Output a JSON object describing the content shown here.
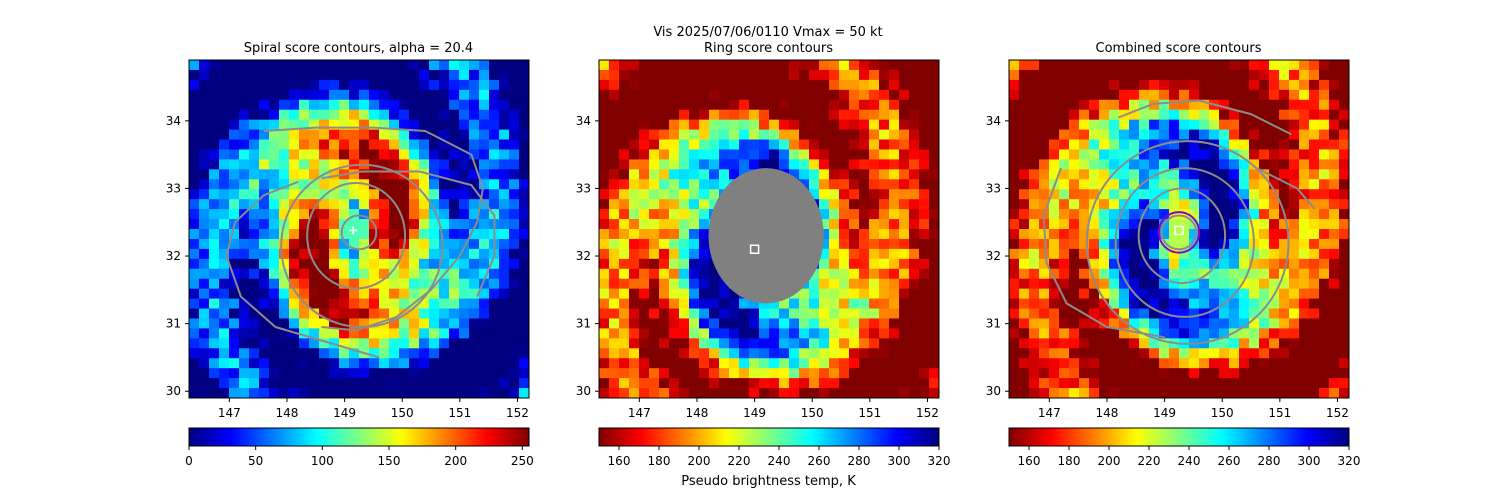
{
  "figure": {
    "suptitle_line1": "Vis  2025/07/06/0110    Vmax = 50 kt"
  },
  "colors": {
    "contour": "#8c8c8c",
    "inner_ring": "#8b00c8",
    "ring_mask": "#808080",
    "center_marker": "#ffffff"
  },
  "chart_data": [
    {
      "type": "heatmap",
      "title": "Spiral score contours, alpha = 20.4",
      "xlim": [
        146.3,
        152.2
      ],
      "ylim": [
        29.9,
        34.9
      ],
      "xticks": [
        147,
        148,
        149,
        150,
        151,
        152
      ],
      "yticks": [
        30,
        31,
        32,
        33,
        34
      ],
      "colormap": "jet",
      "colorbar": {
        "range": [
          0,
          255
        ],
        "ticks": [
          0,
          50,
          100,
          150,
          200,
          250
        ],
        "reversed": false,
        "label": ""
      },
      "center": [
        149.15,
        32.38
      ],
      "marker": "plus",
      "contours": [
        {
          "kind": "ring",
          "center": [
            149.25,
            32.35
          ],
          "r": [
            0.3,
            0.25
          ]
        },
        {
          "kind": "ring",
          "center": [
            149.2,
            32.3
          ],
          "r": [
            0.85,
            0.78
          ]
        },
        {
          "kind": "ring",
          "center": [
            149.3,
            32.15
          ],
          "r": [
            1.4,
            1.2
          ]
        },
        {
          "kind": "path",
          "points": [
            [
              147.6,
              33.85
            ],
            [
              148.5,
              33.9
            ],
            [
              149.5,
              33.9
            ],
            [
              150.4,
              33.85
            ],
            [
              151.2,
              33.5
            ],
            [
              151.4,
              33.0
            ],
            [
              151.3,
              32.5
            ],
            [
              151.0,
              32.0
            ],
            [
              150.5,
              31.5
            ],
            [
              149.9,
              31.1
            ],
            [
              149.2,
              30.9
            ],
            [
              148.6,
              30.95
            ]
          ]
        },
        {
          "kind": "path",
          "points": [
            [
              148.2,
              33.1
            ],
            [
              147.6,
              32.9
            ],
            [
              147.1,
              32.5
            ],
            [
              146.95,
              32.0
            ],
            [
              147.2,
              31.4
            ],
            [
              147.8,
              30.95
            ],
            [
              148.6,
              30.75
            ],
            [
              149.6,
              30.5
            ]
          ]
        },
        {
          "kind": "path",
          "points": [
            [
              148.6,
              33.15
            ],
            [
              149.3,
              33.25
            ],
            [
              150.3,
              33.25
            ],
            [
              151.2,
              33.05
            ],
            [
              151.6,
              32.6
            ],
            [
              151.6,
              32.0
            ],
            [
              151.3,
              31.4
            ]
          ]
        }
      ]
    },
    {
      "type": "heatmap",
      "title": "Ring score contours",
      "xlim": [
        146.3,
        152.2
      ],
      "ylim": [
        29.9,
        34.9
      ],
      "xticks": [
        147,
        148,
        149,
        150,
        151,
        152
      ],
      "yticks": [
        30,
        31,
        32,
        33,
        34
      ],
      "colormap": "jet",
      "colorbar": {
        "range": [
          150,
          320
        ],
        "ticks": [
          160,
          180,
          200,
          220,
          240,
          260,
          280,
          300,
          320
        ],
        "reversed": true,
        "label": "Pseudo brightness temp, K"
      },
      "center": [
        149.0,
        32.1
      ],
      "marker": "square",
      "mask": {
        "center": [
          149.2,
          32.3
        ],
        "r": [
          1.0,
          1.0
        ]
      },
      "contours": []
    },
    {
      "type": "heatmap",
      "title": "Combined score contours",
      "xlim": [
        146.3,
        152.2
      ],
      "ylim": [
        29.9,
        34.9
      ],
      "xticks": [
        147,
        148,
        149,
        150,
        151,
        152
      ],
      "yticks": [
        30,
        31,
        32,
        33,
        34
      ],
      "colormap": "jet",
      "colorbar": {
        "range": [
          150,
          320
        ],
        "ticks": [
          160,
          180,
          200,
          220,
          240,
          260,
          280,
          300,
          320
        ],
        "reversed": true,
        "label": ""
      },
      "center": [
        149.25,
        32.38
      ],
      "marker": "square",
      "inner_ring": {
        "center": [
          149.25,
          32.35
        ],
        "r": [
          0.35,
          0.3
        ]
      },
      "contours": [
        {
          "kind": "ring",
          "center": [
            149.25,
            32.35
          ],
          "r": [
            0.3,
            0.25
          ]
        },
        {
          "kind": "ring",
          "center": [
            149.3,
            32.3
          ],
          "r": [
            0.75,
            0.7
          ]
        },
        {
          "kind": "ring",
          "center": [
            149.35,
            32.2
          ],
          "r": [
            1.2,
            1.1
          ]
        },
        {
          "kind": "ring",
          "center": [
            149.4,
            32.2
          ],
          "r": [
            1.75,
            1.5
          ]
        },
        {
          "kind": "path",
          "points": [
            [
              148.2,
              34.05
            ],
            [
              148.8,
              34.25
            ],
            [
              149.6,
              34.3
            ],
            [
              150.5,
              34.1
            ],
            [
              151.2,
              33.8
            ]
          ]
        },
        {
          "kind": "path",
          "points": [
            [
              147.2,
              33.3
            ],
            [
              146.9,
              32.6
            ],
            [
              146.95,
              31.9
            ],
            [
              147.3,
              31.3
            ],
            [
              148.0,
              30.95
            ],
            [
              149.0,
              30.8
            ]
          ]
        },
        {
          "kind": "path",
          "points": [
            [
              150.6,
              33.3
            ],
            [
              151.3,
              33.0
            ],
            [
              151.6,
              32.7
            ]
          ]
        }
      ]
    }
  ]
}
